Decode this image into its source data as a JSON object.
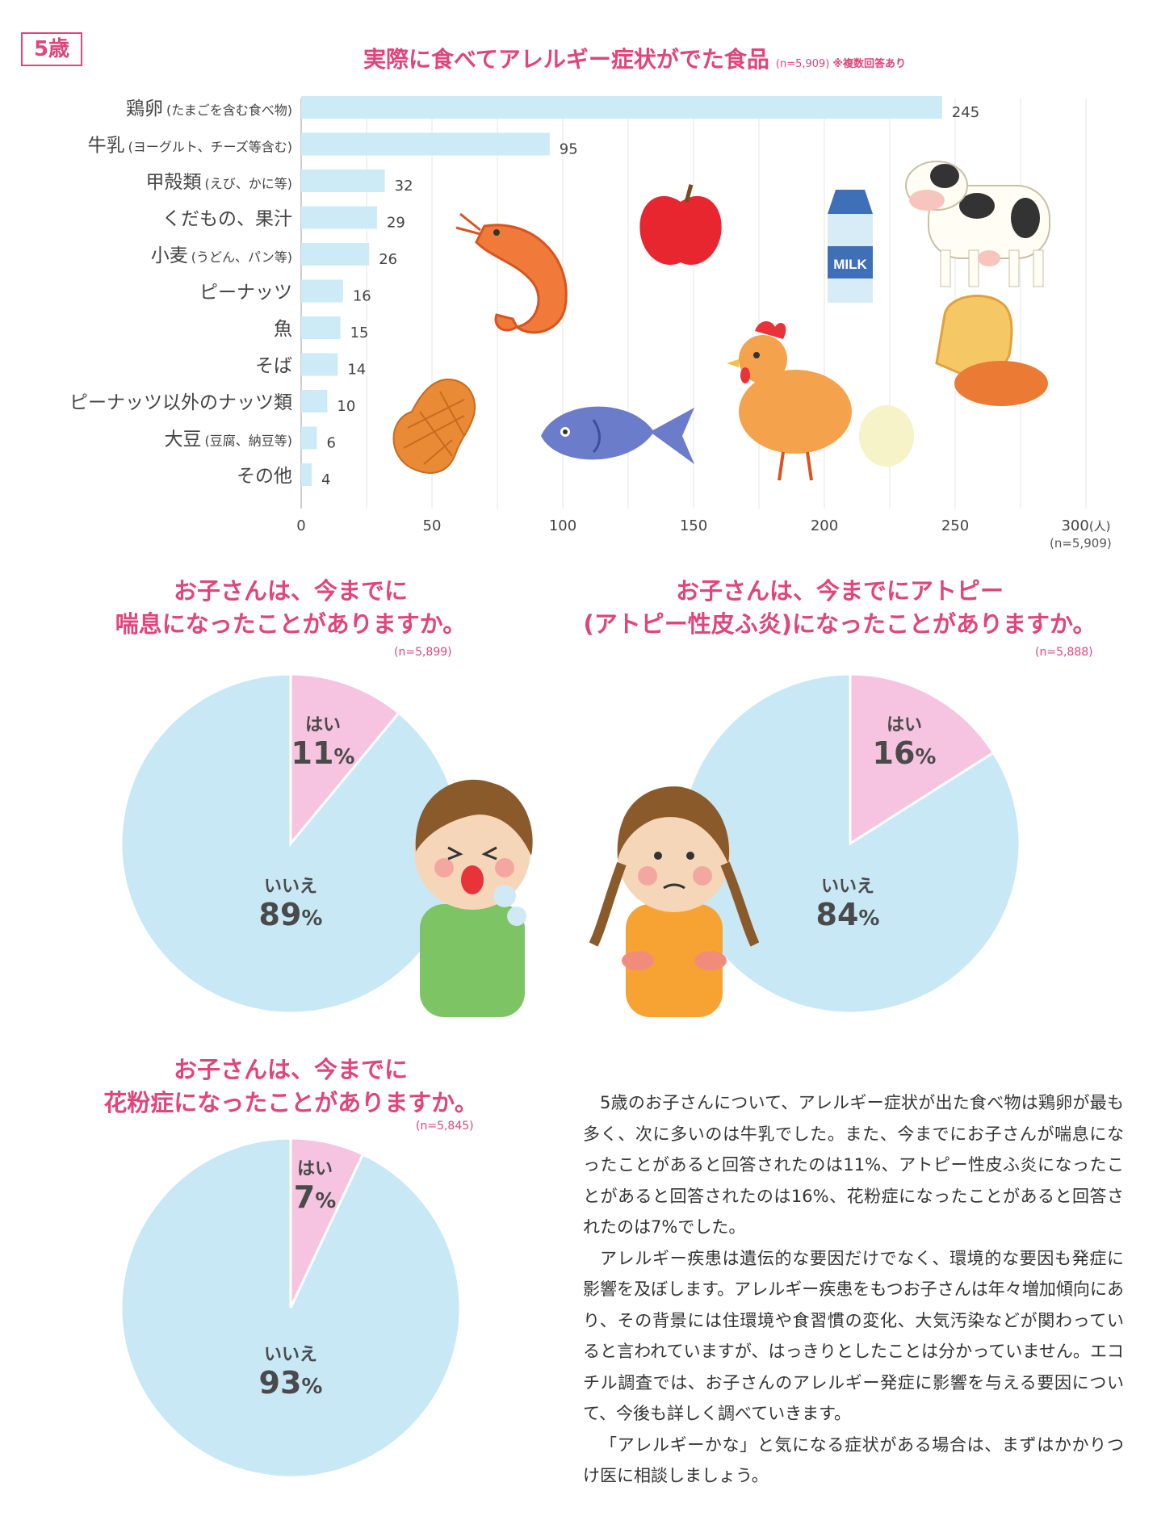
{
  "badge": "5歳",
  "chart_data": [
    {
      "type": "bar",
      "orientation": "horizontal",
      "title": "実際に食べてアレルギー症状がでた食品",
      "title_note": "(n=5,909)",
      "title_note2": "※複数回答あり",
      "categories": [
        {
          "main": "鶏卵",
          "sub": "(たまごを含む食べ物)"
        },
        {
          "main": "牛乳",
          "sub": "(ヨーグルト、チーズ等含む)"
        },
        {
          "main": "甲殻類",
          "sub": "(えび、かに等)"
        },
        {
          "main": "くだもの、果汁",
          "sub": ""
        },
        {
          "main": "小麦",
          "sub": "(うどん、パン等)"
        },
        {
          "main": "ピーナッツ",
          "sub": ""
        },
        {
          "main": "魚",
          "sub": ""
        },
        {
          "main": "そば",
          "sub": ""
        },
        {
          "main": "ピーナッツ以外のナッツ類",
          "sub": ""
        },
        {
          "main": "大豆",
          "sub": "(豆腐、納豆等)"
        },
        {
          "main": "その他",
          "sub": ""
        }
      ],
      "values": [
        245,
        95,
        32,
        29,
        26,
        16,
        15,
        14,
        10,
        6,
        4
      ],
      "xlim": [
        0,
        300
      ],
      "xticks": [
        "0",
        "50",
        "100",
        "150",
        "200",
        "250",
        "300"
      ],
      "xunit": "(人)",
      "n_label": "(n=5,909)",
      "grid": true,
      "bar_color": "#cdeaf7"
    },
    {
      "type": "pie",
      "title_lines": [
        "お子さんは、今までに",
        "喘息になったことがありますか。"
      ],
      "n_label": "(n=5,899)",
      "slices": [
        {
          "label": "はい",
          "value": 11,
          "display": "11",
          "color": "#f6c4e0"
        },
        {
          "label": "いいえ",
          "value": 89,
          "display": "89",
          "color": "#c8e8f6"
        }
      ]
    },
    {
      "type": "pie",
      "title_lines": [
        "お子さんは、今までにアトピー",
        "(アトピー性皮ふ炎)になったことがありますか。"
      ],
      "n_label": "(n=5,888)",
      "slices": [
        {
          "label": "はい",
          "value": 16,
          "display": "16",
          "color": "#f6c4e0"
        },
        {
          "label": "いいえ",
          "value": 84,
          "display": "84",
          "color": "#c8e8f6"
        }
      ]
    },
    {
      "type": "pie",
      "title_lines": [
        "お子さんは、今までに",
        "花粉症になったことがありますか。"
      ],
      "n_label": "(n=5,845)",
      "slices": [
        {
          "label": "はい",
          "value": 7,
          "display": "7",
          "color": "#f6c4e0"
        },
        {
          "label": "いいえ",
          "value": 93,
          "display": "93",
          "color": "#c8e8f6"
        }
      ]
    }
  ],
  "percent_sign": "%",
  "illustrations": {
    "milk_label": "MILK"
  },
  "body_paragraphs": [
    "5歳のお子さんについて、アレルギー症状が出た食べ物は鶏卵が最も多く、次に多いのは牛乳でした。また、今までにお子さんが喘息になったことがあると回答されたのは11%、アトピー性皮ふ炎になったことがあると回答されたのは16%、花粉症になったことがあると回答されたのは7%でした。",
    "アレルギー疾患は遺伝的な要因だけでなく、環境的な要因も発症に影響を及ぼします。アレルギー疾患をもつお子さんは年々増加傾向にあり、その背景には住環境や食習慣の変化、大気汚染などが関わっていると言われていますが、はっきりとしたことは分かっていません。エコチル調査では、お子さんのアレルギー発症に影響を与える要因について、今後も詳しく調べていきます。",
    "「アレルギーかな」と気になる症状がある場合は、まずはかかりつけ医に相談しましょう。"
  ]
}
